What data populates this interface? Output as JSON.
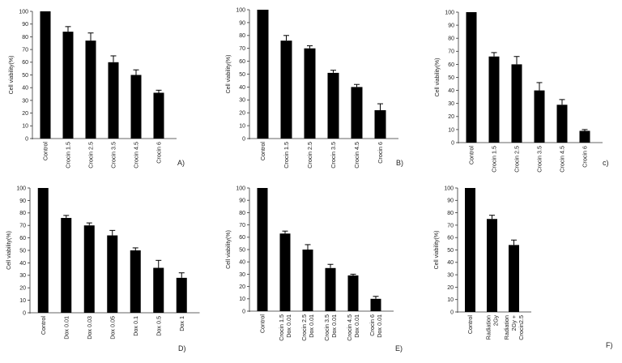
{
  "chart_data": [
    {
      "type": "bar",
      "panel_label": "A)",
      "ylabel": "Cell viability(%)",
      "ylim": [
        0,
        100
      ],
      "yticks": [
        "0",
        "10",
        "20",
        "30",
        "40",
        "50",
        "60",
        "70",
        "80",
        "90",
        "100"
      ],
      "categories": [
        [
          "Control"
        ],
        [
          "Crocin 1.5"
        ],
        [
          "Crocin 2.5"
        ],
        [
          "Crocin 3.5"
        ],
        [
          "Crocin 4.5"
        ],
        [
          "Crocin 6"
        ]
      ],
      "values": [
        100,
        84,
        77,
        60,
        50,
        36
      ],
      "errors": [
        0,
        4,
        6,
        5,
        4,
        2
      ]
    },
    {
      "type": "bar",
      "panel_label": "B)",
      "ylabel": "Cell viability(%)",
      "ylim": [
        0,
        100
      ],
      "yticks": [
        "0",
        "10",
        "20",
        "30",
        "40",
        "50",
        "60",
        "70",
        "80",
        "90",
        "100"
      ],
      "categories": [
        [
          "Control"
        ],
        [
          "Crocin 1.5"
        ],
        [
          "Crocin 2.5"
        ],
        [
          "Crocin 3.5"
        ],
        [
          "Crocin 4.5"
        ],
        [
          "Crocin 6"
        ]
      ],
      "values": [
        100,
        76,
        70,
        51,
        40,
        22
      ],
      "errors": [
        0,
        4,
        2,
        2,
        2,
        5
      ]
    },
    {
      "type": "bar",
      "panel_label": "c)",
      "ylabel": "Cell viability(%)",
      "ylim": [
        0,
        100
      ],
      "yticks": [
        "0",
        "10",
        "20",
        "30",
        "40",
        "50",
        "60",
        "70",
        "80",
        "90",
        "100"
      ],
      "categories": [
        [
          "Control"
        ],
        [
          "Crocin 1.5"
        ],
        [
          "Crocin 2.5"
        ],
        [
          "Crocin 3.5"
        ],
        [
          "Crocin 4.5"
        ],
        [
          "Crocin 6"
        ]
      ],
      "values": [
        100,
        66,
        60,
        40,
        29,
        9
      ],
      "errors": [
        0,
        3,
        6,
        6,
        4,
        1
      ]
    },
    {
      "type": "bar",
      "panel_label": "D)",
      "ylabel": "Cell viability(%)",
      "ylim": [
        0,
        100
      ],
      "yticks": [
        "0",
        "10",
        "20",
        "30",
        "40",
        "50",
        "60",
        "70",
        "80",
        "90",
        "100"
      ],
      "categories": [
        [
          "Control"
        ],
        [
          "Dox 0.01"
        ],
        [
          "Dox 0.03"
        ],
        [
          "Dox 0.05"
        ],
        [
          "Dox 0.1"
        ],
        [
          "Dox 0.5"
        ],
        [
          "Dox 1"
        ]
      ],
      "values": [
        100,
        76,
        70,
        62,
        50,
        36,
        28
      ],
      "errors": [
        0,
        2,
        2,
        4,
        2,
        6,
        4
      ]
    },
    {
      "type": "bar",
      "panel_label": "E)",
      "ylabel": "Cell viability(%)",
      "ylim": [
        0,
        100
      ],
      "yticks": [
        "0",
        "10",
        "20",
        "30",
        "40",
        "50",
        "60",
        "70",
        "80",
        "90",
        "100"
      ],
      "categories": [
        [
          "Control"
        ],
        [
          "Crocin 1.5",
          "Dox 0.01"
        ],
        [
          "Crocin 2.5",
          "Dox 0.01"
        ],
        [
          "Crocin 3.5",
          "Dox 0.01"
        ],
        [
          "Crocin 4.5",
          "Dox 0.01"
        ],
        [
          "Crocin 6",
          "Dox 0.01"
        ]
      ],
      "values": [
        100,
        63,
        50,
        35,
        29,
        10
      ],
      "errors": [
        0,
        2,
        4,
        3,
        1,
        2
      ]
    },
    {
      "type": "bar",
      "panel_label": "F)",
      "ylabel": "Cell viability(%)",
      "ylim": [
        0,
        100
      ],
      "yticks": [
        "0",
        "10",
        "20",
        "30",
        "40",
        "50",
        "60",
        "70",
        "80",
        "90",
        "100"
      ],
      "categories": [
        [
          "Control"
        ],
        [
          "Radiation",
          "2Gy"
        ],
        [
          "Radiation",
          "2Gy +",
          "Crocin2.5"
        ]
      ],
      "values": [
        100,
        75,
        54
      ],
      "errors": [
        0,
        3,
        4
      ]
    }
  ],
  "style": {
    "bar_color": "#000000",
    "axis_color": "#333333",
    "text_color": "#222222",
    "background": "#ffffff"
  }
}
